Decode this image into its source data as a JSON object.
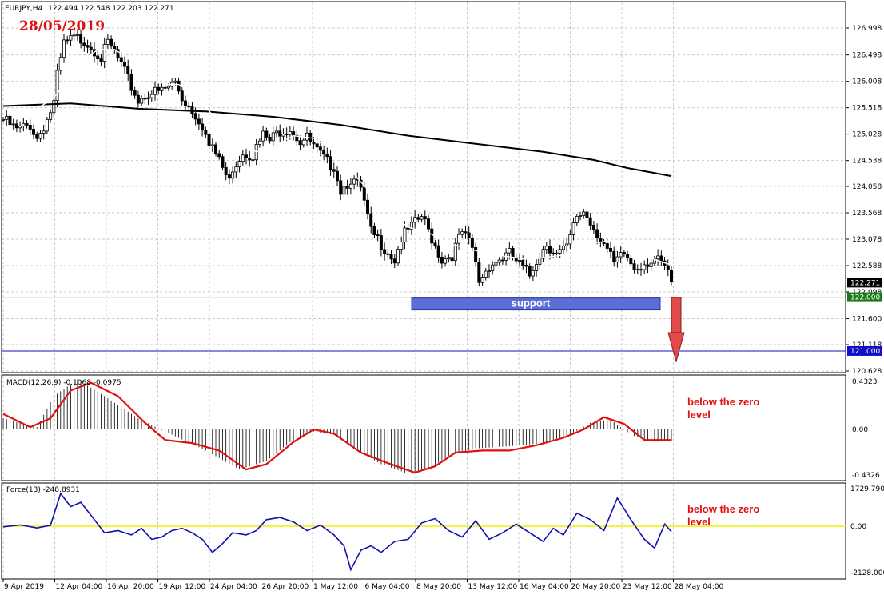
{
  "header": {
    "symbol": "EURJPY,H4",
    "ohlc": "122.494 122.548 122.203 122.271",
    "date_note": "28/05/2019"
  },
  "colors": {
    "bull_body": "#ffffff",
    "bear_body": "#000000",
    "ma_fast": "#ffffff",
    "ma_slow": "#000000",
    "support_box": "#5b6fd6",
    "support_line": "#1a7a1a",
    "target_line": "#1010c8",
    "arrow": "#e04a4a",
    "macd_signal": "#e01010",
    "force_line": "#1010b0",
    "zero_line": "#f0f000",
    "note_text": "#e01010",
    "grid": "#c8c8c8"
  },
  "annotations": {
    "support_label": "support",
    "macd_note": "below the zero level",
    "force_note": "below the zero level"
  },
  "chart_data": [
    {
      "type": "candlestick",
      "title": "EURJPY,H4",
      "ylim": [
        120.628,
        127.3
      ],
      "y_ticks": [
        "126.998",
        "126.498",
        "126.008",
        "125.518",
        "125.028",
        "124.538",
        "124.058",
        "123.568",
        "123.078",
        "122.588",
        "122.098",
        "121.600",
        "121.118",
        "120.628"
      ],
      "price_labels": [
        {
          "text": "122.271",
          "value": 122.271,
          "bg": "#000000"
        },
        {
          "text": "122.000",
          "value": 122.0,
          "bg": "#1a7a1a"
        },
        {
          "text": "121.000",
          "value": 121.0,
          "bg": "#1010c8"
        }
      ],
      "levels": [
        {
          "name": "support",
          "value": 122.0
        },
        {
          "name": "target",
          "value": 121.0
        }
      ],
      "x_labels": [
        "9 Apr 2019",
        "12 Apr 04:00",
        "16 Apr 20:00",
        "19 Apr 12:00",
        "24 Apr 04:00",
        "26 Apr 20:00",
        "1 May 12:00",
        "6 May 04:00",
        "8 May 20:00",
        "13 May 12:00",
        "16 May 04:00",
        "20 May 20:00",
        "23 May 12:00",
        "28 May 04:00"
      ],
      "close_path": [
        [
          0,
          125.3
        ],
        [
          4,
          125.1
        ],
        [
          8,
          125.2
        ],
        [
          10,
          124.95
        ],
        [
          13,
          125.3
        ],
        [
          15,
          125.6
        ],
        [
          16,
          126.1
        ],
        [
          18,
          126.7
        ],
        [
          21,
          126.8
        ],
        [
          24,
          126.78
        ],
        [
          27,
          126.6
        ],
        [
          29,
          126.45
        ],
        [
          31,
          126.7
        ],
        [
          33,
          126.55
        ],
        [
          35,
          126.3
        ],
        [
          38,
          125.9
        ],
        [
          40,
          125.65
        ],
        [
          43,
          125.8
        ],
        [
          46,
          125.8
        ],
        [
          49,
          125.9
        ],
        [
          51,
          126.0
        ],
        [
          53,
          125.7
        ],
        [
          55,
          125.55
        ],
        [
          57,
          125.4
        ],
        [
          59,
          125.2
        ],
        [
          61,
          124.8
        ],
        [
          64,
          124.6
        ],
        [
          66,
          124.2
        ],
        [
          68,
          124.4
        ],
        [
          71,
          124.7
        ],
        [
          74,
          124.65
        ],
        [
          77,
          125.0
        ],
        [
          79,
          124.9
        ],
        [
          82,
          125.1
        ],
        [
          85,
          125.15
        ],
        [
          88,
          124.9
        ],
        [
          90,
          124.95
        ],
        [
          93,
          124.7
        ],
        [
          96,
          124.5
        ],
        [
          98,
          124.45
        ],
        [
          100,
          124.0
        ],
        [
          103,
          124.2
        ],
        [
          106,
          124.0
        ],
        [
          109,
          123.2
        ],
        [
          112,
          123.0
        ],
        [
          116,
          122.7
        ],
        [
          118,
          123.1
        ],
        [
          121,
          123.3
        ],
        [
          124,
          123.5
        ],
        [
          127,
          123.1
        ],
        [
          130,
          122.7
        ],
        [
          133,
          122.8
        ],
        [
          136,
          123.2
        ],
        [
          139,
          122.9
        ],
        [
          141,
          122.3
        ],
        [
          144,
          122.6
        ],
        [
          147,
          122.7
        ],
        [
          150,
          122.8
        ],
        [
          153,
          122.6
        ],
        [
          156,
          122.4
        ],
        [
          158,
          122.7
        ],
        [
          161,
          123.0
        ],
        [
          164,
          122.8
        ],
        [
          167,
          122.9
        ],
        [
          170,
          123.5
        ],
        [
          172,
          123.6
        ],
        [
          175,
          123.3
        ],
        [
          178,
          123.0
        ],
        [
          181,
          122.6
        ],
        [
          184,
          122.8
        ],
        [
          187,
          122.55
        ],
        [
          190,
          122.65
        ],
        [
          193,
          122.7
        ],
        [
          196,
          122.55
        ],
        [
          198,
          122.27
        ]
      ],
      "ma_fast_path": [
        [
          5,
          125.3
        ],
        [
          15,
          125.7
        ],
        [
          22,
          126.3
        ],
        [
          28,
          126.6
        ],
        [
          33,
          126.6
        ],
        [
          38,
          126.4
        ],
        [
          43,
          126.1
        ],
        [
          48,
          125.95
        ],
        [
          52,
          125.95
        ],
        [
          58,
          125.7
        ],
        [
          63,
          125.3
        ],
        [
          69,
          124.9
        ],
        [
          75,
          124.7
        ],
        [
          80,
          124.8
        ],
        [
          86,
          125.0
        ],
        [
          92,
          124.95
        ],
        [
          97,
          124.75
        ],
        [
          103,
          124.35
        ],
        [
          108,
          124.0
        ],
        [
          114,
          123.6
        ],
        [
          120,
          123.3
        ],
        [
          126,
          123.2
        ],
        [
          132,
          123.0
        ],
        [
          138,
          122.9
        ],
        [
          144,
          122.8
        ],
        [
          150,
          122.75
        ],
        [
          156,
          122.7
        ],
        [
          162,
          122.75
        ],
        [
          168,
          122.8
        ],
        [
          174,
          123.0
        ],
        [
          180,
          123.05
        ],
        [
          186,
          122.9
        ],
        [
          192,
          122.72
        ],
        [
          198,
          122.6
        ]
      ],
      "ma_slow_path": [
        [
          0,
          125.55
        ],
        [
          20,
          125.6
        ],
        [
          40,
          125.5
        ],
        [
          60,
          125.45
        ],
        [
          80,
          125.35
        ],
        [
          100,
          125.2
        ],
        [
          120,
          125.0
        ],
        [
          140,
          124.85
        ],
        [
          160,
          124.7
        ],
        [
          175,
          124.55
        ],
        [
          185,
          124.4
        ],
        [
          198,
          124.25
        ]
      ]
    },
    {
      "type": "macd",
      "title": "MACD(12,26,9) -0.1068 -0.0975",
      "ylim": [
        -0.4326,
        0.4323
      ],
      "y_ticks": [
        "0.4323",
        "0.00",
        "-0.4326"
      ],
      "histogram_path": [
        [
          0,
          0.1
        ],
        [
          10,
          0.02
        ],
        [
          15,
          0.3
        ],
        [
          22,
          0.45
        ],
        [
          30,
          0.3
        ],
        [
          40,
          0.1
        ],
        [
          50,
          -0.05
        ],
        [
          60,
          -0.2
        ],
        [
          70,
          -0.38
        ],
        [
          78,
          -0.3
        ],
        [
          85,
          -0.12
        ],
        [
          92,
          -0.02
        ],
        [
          98,
          -0.05
        ],
        [
          105,
          -0.2
        ],
        [
          112,
          -0.33
        ],
        [
          120,
          -0.42
        ],
        [
          126,
          -0.38
        ],
        [
          132,
          -0.25
        ],
        [
          140,
          -0.18
        ],
        [
          150,
          -0.16
        ],
        [
          160,
          -0.13
        ],
        [
          168,
          -0.05
        ],
        [
          174,
          0.06
        ],
        [
          180,
          0.09
        ],
        [
          186,
          -0.05
        ],
        [
          192,
          -0.12
        ],
        [
          198,
          -0.11
        ]
      ],
      "signal_path": [
        [
          0,
          0.14
        ],
        [
          8,
          0.02
        ],
        [
          14,
          0.1
        ],
        [
          20,
          0.35
        ],
        [
          26,
          0.42
        ],
        [
          34,
          0.3
        ],
        [
          42,
          0.06
        ],
        [
          48,
          -0.1
        ],
        [
          56,
          -0.13
        ],
        [
          64,
          -0.2
        ],
        [
          72,
          -0.38
        ],
        [
          78,
          -0.33
        ],
        [
          86,
          -0.12
        ],
        [
          92,
          0.0
        ],
        [
          98,
          -0.04
        ],
        [
          106,
          -0.22
        ],
        [
          114,
          -0.32
        ],
        [
          122,
          -0.41
        ],
        [
          128,
          -0.35
        ],
        [
          134,
          -0.22
        ],
        [
          142,
          -0.2
        ],
        [
          150,
          -0.2
        ],
        [
          158,
          -0.15
        ],
        [
          166,
          -0.08
        ],
        [
          172,
          -0.0
        ],
        [
          178,
          0.11
        ],
        [
          184,
          0.05
        ],
        [
          190,
          -0.1
        ],
        [
          198,
          -0.1
        ]
      ]
    },
    {
      "type": "force",
      "title": "Force(13) -248.8931",
      "ylim": [
        -2128.0,
        1729.7907
      ],
      "y_ticks": [
        "1729.7907",
        "0.00",
        "-2128.000"
      ],
      "line_path": [
        [
          0,
          -30
        ],
        [
          5,
          60
        ],
        [
          10,
          -80
        ],
        [
          14,
          40
        ],
        [
          17,
          1500
        ],
        [
          20,
          900
        ],
        [
          23,
          1100
        ],
        [
          26,
          500
        ],
        [
          30,
          -300
        ],
        [
          34,
          -200
        ],
        [
          38,
          -400
        ],
        [
          41,
          -100
        ],
        [
          44,
          -600
        ],
        [
          47,
          -500
        ],
        [
          50,
          -200
        ],
        [
          53,
          -100
        ],
        [
          56,
          -300
        ],
        [
          59,
          -600
        ],
        [
          62,
          -1200
        ],
        [
          65,
          -800
        ],
        [
          68,
          -300
        ],
        [
          72,
          -400
        ],
        [
          75,
          -200
        ],
        [
          78,
          300
        ],
        [
          82,
          400
        ],
        [
          86,
          200
        ],
        [
          90,
          -200
        ],
        [
          94,
          50
        ],
        [
          98,
          -400
        ],
        [
          101,
          -900
        ],
        [
          103,
          -2000
        ],
        [
          106,
          -1100
        ],
        [
          109,
          -900
        ],
        [
          112,
          -1200
        ],
        [
          116,
          -700
        ],
        [
          120,
          -600
        ],
        [
          124,
          150
        ],
        [
          128,
          350
        ],
        [
          132,
          -200
        ],
        [
          136,
          -500
        ],
        [
          140,
          250
        ],
        [
          144,
          -600
        ],
        [
          148,
          -300
        ],
        [
          152,
          100
        ],
        [
          156,
          -300
        ],
        [
          160,
          -700
        ],
        [
          163,
          -100
        ],
        [
          166,
          -400
        ],
        [
          170,
          600
        ],
        [
          174,
          300
        ],
        [
          178,
          -200
        ],
        [
          182,
          1300
        ],
        [
          186,
          300
        ],
        [
          190,
          -600
        ],
        [
          193,
          -1000
        ],
        [
          196,
          100
        ],
        [
          198,
          -250
        ]
      ]
    }
  ]
}
